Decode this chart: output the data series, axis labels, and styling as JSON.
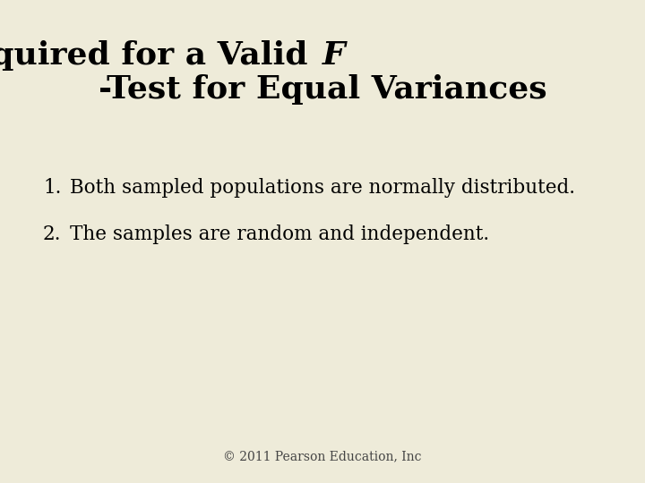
{
  "background_color": "#eeebd9",
  "title_line1": "Conditions Required for a Valid ",
  "title_F": "F",
  "title_line2": "-Test for Equal Variances",
  "title_fontsize": 26,
  "title_color": "#000000",
  "item1_num": "1.",
  "item1_text": "Both sampled populations are normally distributed.",
  "item2_num": "2.",
  "item2_text": "The samples are random and independent.",
  "item_fontsize": 15.5,
  "item_color": "#000000",
  "footer": "© 2011 Pearson Education, Inc",
  "footer_fontsize": 10,
  "footer_color": "#444444"
}
